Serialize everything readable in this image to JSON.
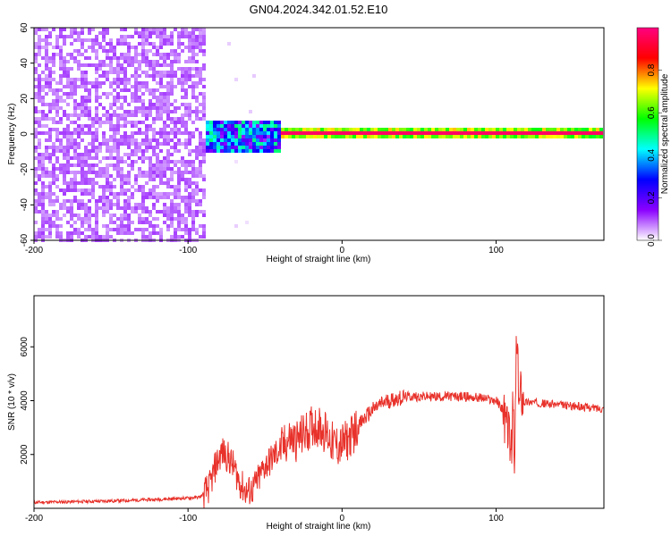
{
  "title": "GN04.2024.342.01.52.E10",
  "chart_data": [
    {
      "type": "heatmap",
      "xlabel": "Height of straight line (km)",
      "ylabel": "Frequency (Hz)",
      "xlim": [
        -200,
        170
      ],
      "ylim": [
        -60,
        60
      ],
      "xticks": [
        -200,
        -100,
        0,
        100
      ],
      "yticks": [
        -60,
        -40,
        -20,
        0,
        20,
        40,
        60
      ],
      "colorbar": {
        "label": "Normalized spectral amplitude",
        "range": [
          0,
          1
        ],
        "ticks": [
          "0.0",
          "0.2",
          "0.4",
          "0.6",
          "0.8"
        ],
        "colormap": [
          "#ffffff",
          "#8b00ff",
          "#0000ff",
          "#00ffff",
          "#00ff00",
          "#ffff00",
          "#ff0000",
          "#ff0080"
        ]
      },
      "regions": [
        {
          "x": [
            -200,
            -88
          ],
          "frequency_range": [
            -60,
            60
          ],
          "amplitude": 0.1
        },
        {
          "x": [
            -88,
            -40
          ],
          "frequency_range": [
            -10,
            8
          ],
          "amplitude": 0.3
        },
        {
          "x": [
            -40,
            170
          ],
          "frequency_range": [
            -3,
            3
          ],
          "amplitude": 0.95
        }
      ]
    },
    {
      "type": "line",
      "xlabel": "Height of straight line (km)",
      "ylabel": "SNR (10 * v/v)",
      "xlim": [
        -200,
        170
      ],
      "ylim": [
        0,
        7900
      ],
      "xticks": [
        -200,
        -100,
        0,
        100
      ],
      "yticks": [
        2000,
        4000,
        6000
      ],
      "color": "#e8312a",
      "series": [
        {
          "x": [
            -200,
            -180,
            -160,
            -140,
            -120,
            -100,
            -92,
            -86,
            -82,
            -78,
            -74,
            -70,
            -66,
            -62,
            -58,
            -54,
            -50,
            -46,
            -42,
            -38,
            -34,
            -30,
            -26,
            -22,
            -18,
            -14,
            -10,
            -6,
            -2,
            2,
            6,
            10,
            14,
            18,
            22,
            26,
            30,
            34,
            38,
            42,
            50,
            60,
            70,
            80,
            90,
            100,
            104,
            106,
            108,
            110,
            111,
            112,
            113,
            114,
            115,
            116,
            118,
            122,
            130,
            140,
            150,
            160,
            170
          ],
          "y": [
            220,
            240,
            260,
            290,
            330,
            380,
            420,
            800,
            1600,
            2100,
            1900,
            1500,
            900,
            600,
            700,
            1100,
            1600,
            1800,
            2100,
            2300,
            2600,
            2500,
            2700,
            2900,
            3100,
            3000,
            2800,
            2400,
            2300,
            2450,
            2700,
            3000,
            3300,
            3550,
            3750,
            3900,
            4000,
            4050,
            4100,
            4150,
            4150,
            4150,
            4150,
            4150,
            4100,
            4000,
            3700,
            3200,
            3000,
            2000,
            4000,
            900,
            6000,
            5400,
            3800,
            4500,
            3950,
            3950,
            3900,
            3850,
            3800,
            3750,
            3700
          ]
        }
      ]
    }
  ]
}
